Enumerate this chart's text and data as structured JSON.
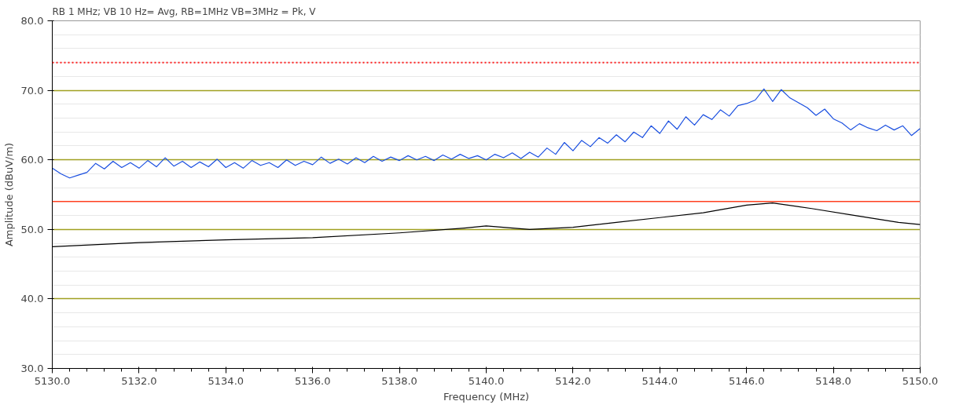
{
  "chart_data": {
    "type": "line",
    "title": "RB 1 MHz; VB 10 Hz= Avg, RB=1MHz VB=3MHz = Pk, V",
    "xlabel": "Frequency (MHz)",
    "ylabel": "Amplitude (dBuV/m)",
    "xlim": [
      5130,
      5150
    ],
    "ylim": [
      30,
      80
    ],
    "xticks": [
      {
        "value": 5130,
        "label": "5130.0"
      },
      {
        "value": 5132,
        "label": "5132.0"
      },
      {
        "value": 5134,
        "label": "5134.0"
      },
      {
        "value": 5136,
        "label": "5136.0"
      },
      {
        "value": 5138,
        "label": "5138.0"
      },
      {
        "value": 5140,
        "label": "5140.0"
      },
      {
        "value": 5142,
        "label": "5142.0"
      },
      {
        "value": 5144,
        "label": "5144.0"
      },
      {
        "value": 5146,
        "label": "5146.0"
      },
      {
        "value": 5148,
        "label": "5148.0"
      },
      {
        "value": 5150,
        "label": "5150.0"
      }
    ],
    "yticks": [
      {
        "value": 30,
        "label": "30.0"
      },
      {
        "value": 40,
        "label": "40.0"
      },
      {
        "value": 50,
        "label": "50.0"
      },
      {
        "value": 60,
        "label": "60.0"
      },
      {
        "value": 70,
        "label": "70.0"
      },
      {
        "value": 80,
        "label": "80.0"
      }
    ],
    "grid": "y",
    "marker": "none",
    "line_style": "solid",
    "ref_lines": [
      {
        "axis": "y",
        "value": 74,
        "color": "#ff2020",
        "line_style": "dotted"
      },
      {
        "axis": "y",
        "value": 54,
        "color": "#ff4020",
        "line_style": "solid"
      }
    ],
    "series": [
      {
        "color": "#1a4fe0",
        "x": [
          5130.0,
          5130.2,
          5130.4,
          5130.6,
          5130.8,
          5131.0,
          5131.2,
          5131.4,
          5131.6,
          5131.8,
          5132.0,
          5132.2,
          5132.4,
          5132.6,
          5132.8,
          5133.0,
          5133.2,
          5133.4,
          5133.6,
          5133.8,
          5134.0,
          5134.2,
          5134.4,
          5134.6,
          5134.8,
          5135.0,
          5135.2,
          5135.4,
          5135.6,
          5135.8,
          5136.0,
          5136.2,
          5136.4,
          5136.6,
          5136.8,
          5137.0,
          5137.2,
          5137.4,
          5137.6,
          5137.8,
          5138.0,
          5138.2,
          5138.4,
          5138.6,
          5138.8,
          5139.0,
          5139.2,
          5139.4,
          5139.6,
          5139.8,
          5140.0,
          5140.2,
          5140.4,
          5140.6,
          5140.8,
          5141.0,
          5141.2,
          5141.4,
          5141.6,
          5141.8,
          5142.0,
          5142.2,
          5142.4,
          5142.6,
          5142.8,
          5143.0,
          5143.2,
          5143.4,
          5143.6,
          5143.8,
          5144.0,
          5144.2,
          5144.4,
          5144.6,
          5144.8,
          5145.0,
          5145.2,
          5145.4,
          5145.6,
          5145.8,
          5146.0,
          5146.2,
          5146.4,
          5146.6,
          5146.8,
          5147.0,
          5147.2,
          5147.4,
          5147.6,
          5147.8,
          5148.0,
          5148.2,
          5148.4,
          5148.6,
          5148.8,
          5149.0,
          5149.2,
          5149.4,
          5149.6,
          5149.8,
          5150.0
        ],
        "values": [
          58.8,
          58.0,
          57.4,
          57.8,
          58.2,
          59.5,
          58.7,
          59.8,
          58.9,
          59.6,
          58.8,
          59.9,
          59.0,
          60.3,
          59.1,
          59.8,
          58.9,
          59.7,
          59.0,
          60.1,
          58.9,
          59.6,
          58.8,
          59.9,
          59.2,
          59.6,
          58.9,
          60.0,
          59.2,
          59.8,
          59.3,
          60.4,
          59.5,
          60.1,
          59.4,
          60.3,
          59.6,
          60.5,
          59.8,
          60.4,
          59.9,
          60.6,
          60.0,
          60.5,
          59.9,
          60.7,
          60.1,
          60.8,
          60.2,
          60.6,
          60.0,
          60.8,
          60.3,
          61.0,
          60.2,
          61.1,
          60.4,
          61.7,
          60.8,
          62.5,
          61.3,
          62.8,
          61.9,
          63.2,
          62.4,
          63.6,
          62.6,
          64.0,
          63.2,
          64.9,
          63.8,
          65.6,
          64.4,
          66.2,
          65.0,
          66.5,
          65.8,
          67.2,
          66.3,
          67.8,
          68.1,
          68.6,
          70.2,
          68.4,
          70.1,
          68.9,
          68.2,
          67.5,
          66.4,
          67.3,
          65.9,
          65.3,
          64.3,
          65.2,
          64.6,
          64.2,
          65.0,
          64.3,
          64.9,
          63.5,
          64.5
        ]
      },
      {
        "color": "#000000",
        "x": [
          5130,
          5132,
          5134,
          5136,
          5138,
          5139.5,
          5140,
          5141,
          5142,
          5143,
          5144,
          5145,
          5146,
          5146.6,
          5147.5,
          5148.5,
          5149.5,
          5150
        ],
        "values": [
          47.5,
          48.1,
          48.5,
          48.8,
          49.5,
          50.2,
          50.5,
          50.0,
          50.3,
          51.0,
          51.7,
          52.4,
          53.5,
          53.8,
          53.0,
          52.0,
          51.0,
          50.7
        ]
      }
    ]
  }
}
